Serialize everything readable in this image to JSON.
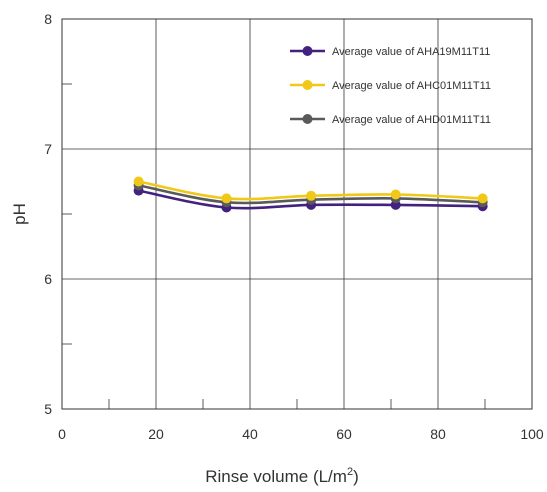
{
  "chart_data": {
    "type": "line",
    "xlabel": "Rinse volume (L/m",
    "xlabel_sup": "2",
    "xlabel_end": ")",
    "ylabel": "pH",
    "xlim": [
      0,
      100
    ],
    "ylim": [
      5,
      8
    ],
    "x_ticks": [
      "0",
      "20",
      "40",
      "60",
      "80",
      "100"
    ],
    "y_ticks": [
      "5",
      "6",
      "7",
      "8"
    ],
    "grid": true,
    "legend_position": "top-right",
    "x": [
      16.3,
      35.0,
      53.0,
      71.0,
      89.5
    ],
    "series": [
      {
        "name": "Average value of AHA19M11T11",
        "color": "#43217e",
        "values": [
          6.68,
          6.55,
          6.57,
          6.57,
          6.56
        ]
      },
      {
        "name": "Average value of AHC01M11T11",
        "color": "#f0c818",
        "values": [
          6.75,
          6.62,
          6.64,
          6.65,
          6.62
        ]
      },
      {
        "name": "Average value of AHD01M11T11",
        "color": "#5a5a5a",
        "values": [
          6.72,
          6.59,
          6.61,
          6.62,
          6.59
        ]
      }
    ]
  }
}
